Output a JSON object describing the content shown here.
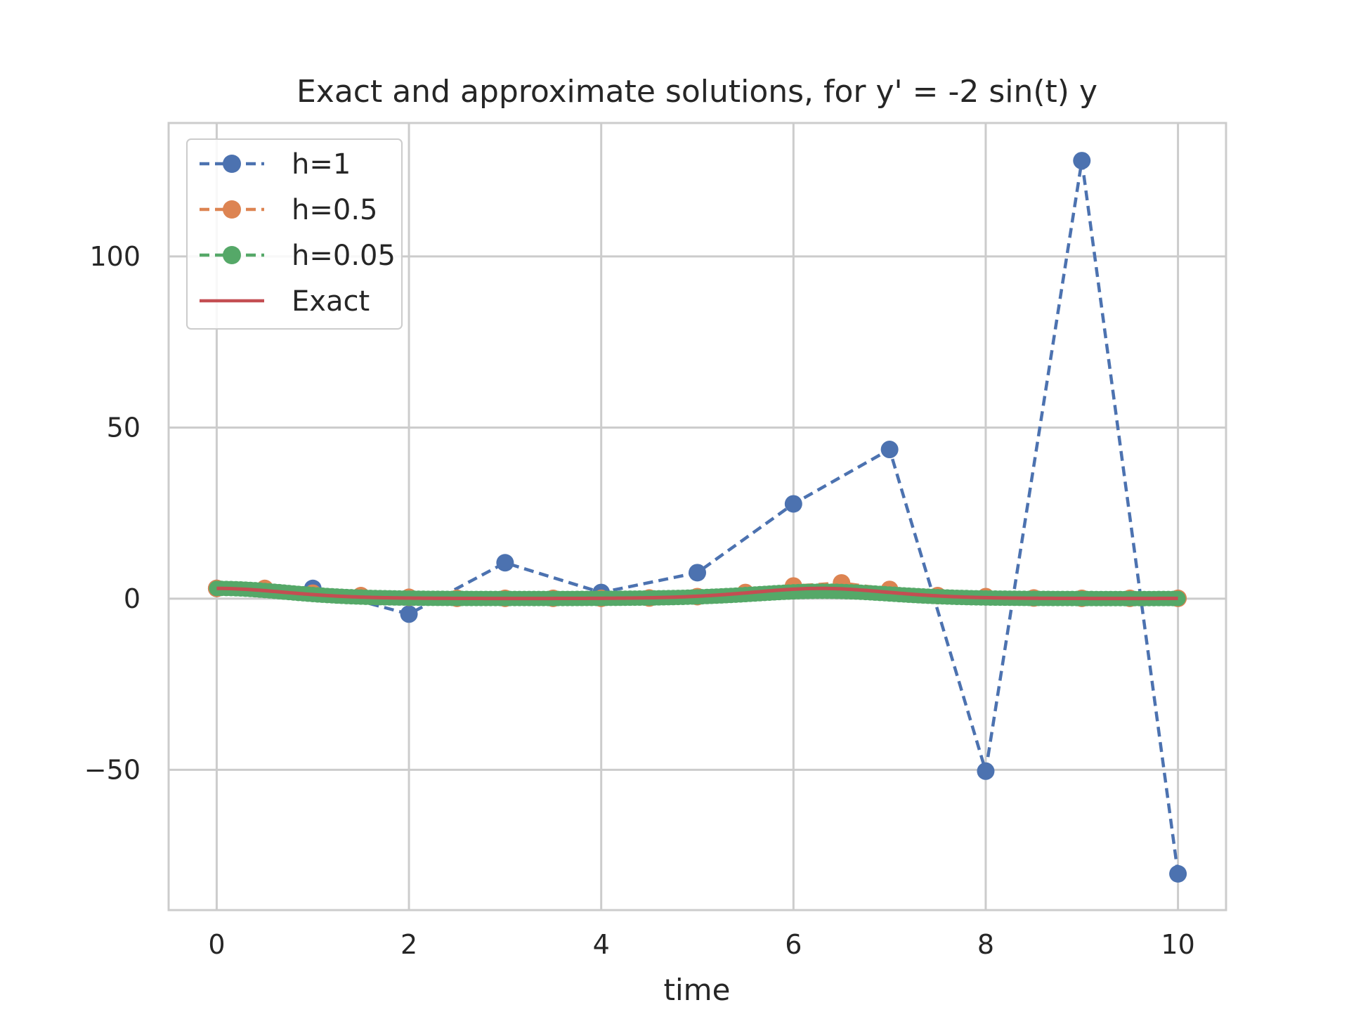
{
  "chart_data": {
    "type": "line",
    "title": "Exact and approximate solutions, for y' = -2 sin(t) y",
    "xlabel": "time",
    "ylabel": "",
    "xlim": [
      -0.5,
      10.5
    ],
    "ylim": [
      -91,
      139
    ],
    "xticks": [
      0,
      2,
      4,
      6,
      8,
      10
    ],
    "yticks": [
      -50,
      0,
      50,
      100
    ],
    "xtick_labels": [
      "0",
      "2",
      "4",
      "6",
      "8",
      "10"
    ],
    "ytick_labels": [
      "−50",
      "0",
      "50",
      "100"
    ],
    "grid": true,
    "legend_position": "top-left",
    "series": [
      {
        "name": "h=1",
        "color": "#4c72b0",
        "style": "dashed-markers",
        "x": [
          0,
          1,
          2,
          3,
          4,
          5,
          6,
          7,
          8,
          9,
          10
        ],
        "y": [
          3.0,
          3.0,
          -4.5,
          10.5,
          1.8,
          7.6,
          27.7,
          43.6,
          -50.4,
          128.0,
          -80.4
        ]
      },
      {
        "name": "h=0.5",
        "color": "#dd8452",
        "style": "dashed-markers",
        "x": [
          0,
          0.5,
          1,
          1.5,
          2,
          2.5,
          3,
          3.5,
          4,
          4.5,
          5,
          5.5,
          6,
          6.5,
          7,
          7.5,
          8,
          8.5,
          9,
          9.5,
          10
        ],
        "y": [
          3.0,
          3.0,
          1.6,
          0.9,
          0.4,
          0.1,
          0.1,
          0.1,
          0.1,
          0.2,
          0.6,
          1.8,
          3.7,
          4.6,
          2.7,
          0.9,
          0.6,
          0.2,
          0.1,
          0.1,
          0.1
        ]
      },
      {
        "name": "h=0.05",
        "color": "#55a868",
        "style": "dashed-markers-dense",
        "step": 0.05,
        "x_range": [
          0,
          10
        ]
      },
      {
        "name": "Exact",
        "color": "#c44e52",
        "style": "solid",
        "formula": "3*exp(2*(cos(t)-1))",
        "x_range": [
          0,
          10
        ]
      }
    ]
  }
}
